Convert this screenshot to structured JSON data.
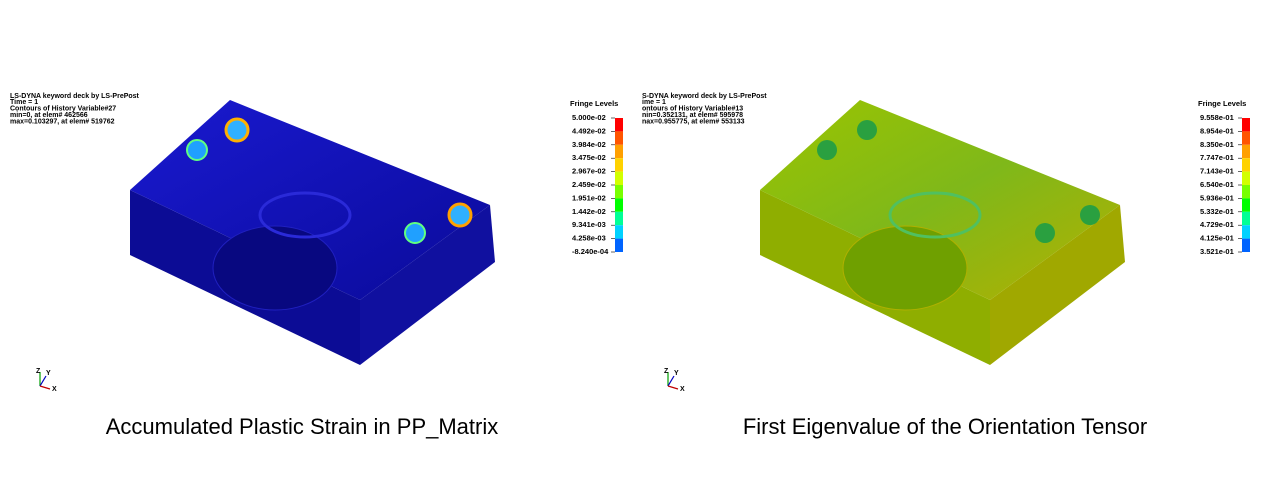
{
  "panels": [
    {
      "header": [
        "LS-DYNA keyword deck by LS-PrePost",
        "Time =        1",
        "Contours of History Variable#27",
        " min=0, at elem# 462566",
        " max=0.103297, at elem# 519762"
      ],
      "legend": {
        "title": "Fringe Levels",
        "levels": [
          "5.000e-02",
          "4.492e-02",
          "3.984e-02",
          "3.475e-02",
          "2.967e-02",
          "2.459e-02",
          "1.951e-02",
          "1.442e-02",
          "9.341e-03",
          "4.258e-03",
          "-8.240e-04"
        ],
        "colors": [
          "#ff0000",
          "#ff5500",
          "#ffa000",
          "#ffd200",
          "#d2ff00",
          "#78ff00",
          "#00ff00",
          "#00ff96",
          "#00d2ff",
          "#0064ff"
        ]
      },
      "triad": [
        "Z",
        "Y",
        "X"
      ],
      "caption": "Accumulated Plastic Strain in PP_Matrix"
    },
    {
      "header": [
        "S-DYNA keyword deck by LS-PrePost",
        "ime =        1",
        "ontours of History Variable#13",
        "nin=0.352131, at elem# 595978",
        "nax=0.955775, at elem# 553133"
      ],
      "legend": {
        "title": "Fringe Levels",
        "levels": [
          "9.558e-01",
          "8.954e-01",
          "8.350e-01",
          "7.747e-01",
          "7.143e-01",
          "6.540e-01",
          "5.936e-01",
          "5.332e-01",
          "4.729e-01",
          "4.125e-01",
          "3.521e-01"
        ],
        "colors": [
          "#ff0000",
          "#ff5500",
          "#ffa000",
          "#ffd200",
          "#d2ff00",
          "#78ff00",
          "#00ff00",
          "#00ff96",
          "#00d2ff",
          "#0064ff"
        ]
      },
      "triad": [
        "Z",
        "Y",
        "X"
      ],
      "caption": "First Eigenvalue of the Orientation Tensor"
    }
  ]
}
